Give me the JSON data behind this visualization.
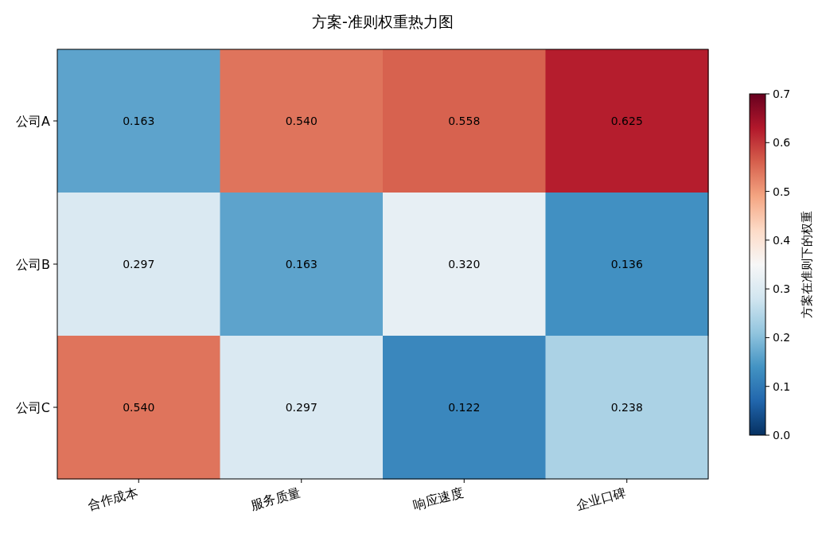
{
  "chart_data": {
    "type": "heatmap",
    "title": "方案-准则权重热力图",
    "categories": [
      "合作成本",
      "服务质量",
      "响应速度",
      "企业口碑"
    ],
    "y_categories": [
      "公司A",
      "公司B",
      "公司C"
    ],
    "cells": [
      [
        0.163,
        0.54,
        0.558,
        0.625
      ],
      [
        0.297,
        0.163,
        0.32,
        0.136
      ],
      [
        0.54,
        0.297,
        0.122,
        0.238
      ]
    ],
    "cell_labels": [
      [
        "0.163",
        "0.540",
        "0.558",
        "0.625"
      ],
      [
        "0.297",
        "0.163",
        "0.320",
        "0.136"
      ],
      [
        "0.540",
        "0.297",
        "0.122",
        "0.238"
      ]
    ],
    "clim": [
      0,
      0.7
    ],
    "cticks": [
      {
        "value": 0,
        "label": "0.0"
      },
      0.1,
      0.2,
      0.3,
      0.4,
      0.5,
      0.6,
      0.7
    ],
    "clabel": "方案在准则下的权重"
  }
}
